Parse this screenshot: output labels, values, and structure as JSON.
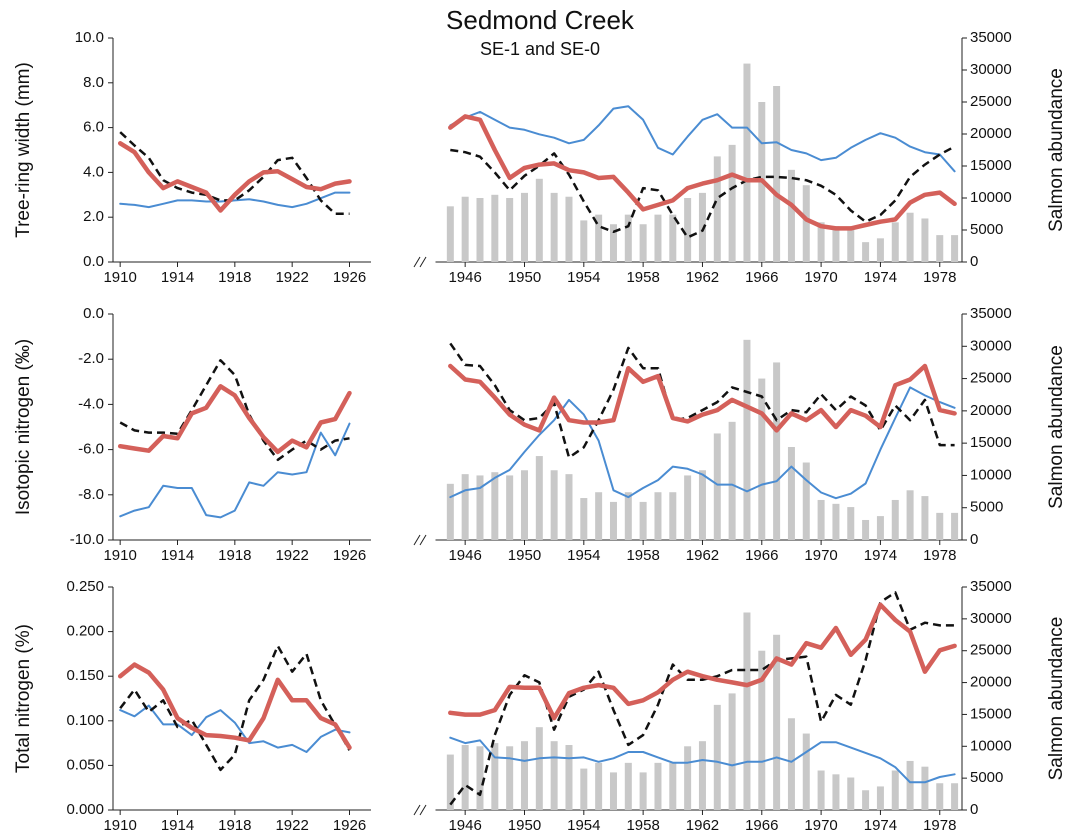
{
  "chart_data": [
    {
      "type": "line",
      "title": "Sedmond Creek",
      "subtitle": "SE-1 and SE-0",
      "ylabel": "Tree-ring width (mm)",
      "y2label": "Salmon abundance",
      "x": [
        1910,
        1911,
        1912,
        1913,
        1914,
        1915,
        1916,
        1917,
        1918,
        1919,
        1920,
        1921,
        1922,
        1923,
        1924,
        1925,
        1926,
        1945,
        1946,
        1947,
        1948,
        1949,
        1950,
        1951,
        1952,
        1953,
        1954,
        1955,
        1956,
        1957,
        1958,
        1959,
        1960,
        1961,
        1962,
        1963,
        1964,
        1965,
        1966,
        1967,
        1968,
        1969,
        1970,
        1971,
        1972,
        1973,
        1974,
        1975,
        1976,
        1977,
        1978,
        1979
      ],
      "xlim": [
        [
          1909.5,
          1927.5
        ],
        [
          1944,
          1979.5
        ]
      ],
      "xticks": [
        1910,
        1914,
        1918,
        1922,
        1926,
        1946,
        1950,
        1954,
        1958,
        1962,
        1966,
        1970,
        1974,
        1978
      ],
      "ylim": [
        0,
        10
      ],
      "yticks": [
        {
          "value": 0,
          "label": "0.0"
        },
        {
          "value": 2,
          "label": "2.0"
        },
        {
          "value": 4,
          "label": "4.0"
        },
        {
          "value": 6,
          "label": "6.0"
        },
        {
          "value": 8,
          "label": "8.0"
        },
        {
          "value": 10,
          "label": "10.0"
        }
      ],
      "y2lim": [
        0,
        35000
      ],
      "y2ticks": [
        0,
        5000,
        10000,
        15000,
        20000,
        25000,
        30000,
        35000
      ],
      "series": [
        {
          "type": "bar",
          "axis": "y2",
          "color": "#c8c8c8",
          "values": [
            null,
            null,
            null,
            null,
            null,
            null,
            null,
            null,
            null,
            null,
            null,
            null,
            null,
            null,
            null,
            null,
            null,
            8700,
            10200,
            10000,
            10500,
            10000,
            10800,
            13000,
            10800,
            10200,
            6500,
            7400,
            5900,
            7400,
            5900,
            7400,
            7400,
            10000,
            10800,
            16500,
            18300,
            31000,
            25000,
            27500,
            14400,
            12000,
            6200,
            5600,
            5100,
            3100,
            3700,
            6200,
            7700,
            6800,
            4200,
            4200
          ]
        },
        {
          "type": "line",
          "color": "#4a8cd2",
          "linewidth": 2,
          "values": [
            2.6,
            2.55,
            2.45,
            2.6,
            2.75,
            2.75,
            2.7,
            2.7,
            2.75,
            2.8,
            2.7,
            2.55,
            2.45,
            2.6,
            2.85,
            3.1,
            3.1,
            6.1,
            6.45,
            6.7,
            6.35,
            6.0,
            5.9,
            5.7,
            5.55,
            5.3,
            5.45,
            6.1,
            6.85,
            6.95,
            6.35,
            5.1,
            4.8,
            5.6,
            6.35,
            6.6,
            6.0,
            6.0,
            5.3,
            5.35,
            5.0,
            4.85,
            4.55,
            4.65,
            5.1,
            5.45,
            5.75,
            5.55,
            5.15,
            4.9,
            4.8,
            4.05
          ]
        },
        {
          "type": "line",
          "color": "#111111",
          "linewidth": 2.5,
          "linestyle": "dashed",
          "values": [
            5.8,
            5.2,
            4.65,
            3.65,
            3.3,
            3.1,
            3.0,
            2.75,
            2.75,
            3.2,
            3.8,
            4.55,
            4.65,
            3.75,
            2.75,
            2.15,
            2.15,
            5.0,
            4.9,
            4.7,
            4.0,
            3.2,
            3.85,
            4.3,
            4.85,
            3.9,
            2.7,
            1.6,
            1.35,
            1.6,
            3.3,
            3.2,
            2.1,
            1.1,
            1.4,
            2.85,
            3.3,
            3.65,
            3.8,
            3.8,
            3.75,
            3.65,
            3.4,
            3.0,
            2.3,
            1.8,
            2.1,
            2.75,
            3.8,
            4.35,
            4.8,
            5.15
          ]
        },
        {
          "type": "line",
          "color": "#d4605a",
          "linewidth": 4.5,
          "values": [
            5.3,
            4.9,
            4.0,
            3.3,
            3.6,
            3.35,
            3.1,
            2.3,
            3.0,
            3.6,
            4.0,
            4.05,
            3.7,
            3.35,
            3.25,
            3.5,
            3.6,
            6.0,
            6.5,
            6.35,
            5.0,
            3.75,
            4.2,
            4.35,
            4.4,
            4.1,
            4.0,
            3.75,
            3.8,
            3.1,
            2.35,
            2.55,
            2.75,
            3.3,
            3.5,
            3.65,
            3.9,
            3.65,
            3.65,
            3.0,
            2.55,
            1.9,
            1.6,
            1.5,
            1.5,
            1.65,
            1.8,
            1.9,
            2.65,
            3.0,
            3.1,
            2.6
          ]
        }
      ]
    },
    {
      "type": "line",
      "ylabel": "Isotopic nitrogen (‰)",
      "y2label": "Salmon abundance",
      "x": [
        1910,
        1911,
        1912,
        1913,
        1914,
        1915,
        1916,
        1917,
        1918,
        1919,
        1920,
        1921,
        1922,
        1923,
        1924,
        1925,
        1926,
        1945,
        1946,
        1947,
        1948,
        1949,
        1950,
        1951,
        1952,
        1953,
        1954,
        1955,
        1956,
        1957,
        1958,
        1959,
        1960,
        1961,
        1962,
        1963,
        1964,
        1965,
        1966,
        1967,
        1968,
        1969,
        1970,
        1971,
        1972,
        1973,
        1974,
        1975,
        1976,
        1977,
        1978,
        1979
      ],
      "xlim": [
        [
          1909.5,
          1927.5
        ],
        [
          1944,
          1979.5
        ]
      ],
      "xticks": [
        1910,
        1914,
        1918,
        1922,
        1926,
        1946,
        1950,
        1954,
        1958,
        1962,
        1966,
        1970,
        1974,
        1978
      ],
      "ylim": [
        -10,
        0
      ],
      "yticks": [
        {
          "value": -10,
          "label": "-10.0"
        },
        {
          "value": -8,
          "label": "-8.0"
        },
        {
          "value": -6,
          "label": "-6.0"
        },
        {
          "value": -4,
          "label": "-4.0"
        },
        {
          "value": -2,
          "label": "-2.0"
        },
        {
          "value": 0,
          "label": "0.0"
        }
      ],
      "y2lim": [
        0,
        35000
      ],
      "y2ticks": [
        0,
        5000,
        10000,
        15000,
        20000,
        25000,
        30000,
        35000
      ],
      "series": [
        {
          "type": "bar",
          "axis": "y2",
          "color": "#c8c8c8",
          "values": [
            null,
            null,
            null,
            null,
            null,
            null,
            null,
            null,
            null,
            null,
            null,
            null,
            null,
            null,
            null,
            null,
            null,
            8700,
            10200,
            10000,
            10500,
            10000,
            10800,
            13000,
            10800,
            10200,
            6500,
            7400,
            5900,
            7400,
            5900,
            7400,
            7400,
            10000,
            10800,
            16500,
            18300,
            31000,
            25000,
            27500,
            14400,
            12000,
            6200,
            5600,
            5100,
            3100,
            3700,
            6200,
            7700,
            6800,
            4200,
            4200
          ]
        },
        {
          "type": "line",
          "color": "#4a8cd2",
          "linewidth": 2,
          "values": [
            -8.95,
            -8.7,
            -8.55,
            -7.6,
            -7.7,
            -7.7,
            -8.9,
            -9.0,
            -8.7,
            -7.45,
            -7.6,
            -7.0,
            -7.1,
            -7.0,
            -5.25,
            -6.25,
            -4.85,
            -8.1,
            -7.8,
            -7.7,
            -7.25,
            -6.9,
            -6.1,
            -5.35,
            -4.7,
            -3.8,
            -4.45,
            -5.6,
            -7.8,
            -8.1,
            -7.7,
            -7.35,
            -6.75,
            -6.85,
            -7.1,
            -7.55,
            -7.55,
            -7.85,
            -7.55,
            -7.4,
            -6.75,
            -7.35,
            -7.9,
            -8.15,
            -7.95,
            -7.5,
            -6.0,
            -4.6,
            -3.25,
            -3.6,
            -3.9,
            -4.15
          ]
        },
        {
          "type": "line",
          "color": "#111111",
          "linewidth": 2.5,
          "linestyle": "dashed",
          "values": [
            -4.8,
            -5.15,
            -5.25,
            -5.25,
            -5.3,
            -4.25,
            -3.15,
            -2.05,
            -2.7,
            -4.45,
            -5.6,
            -6.45,
            -6.0,
            -5.6,
            -6.0,
            -5.6,
            -5.5,
            -1.3,
            -2.25,
            -2.3,
            -3.15,
            -4.25,
            -4.7,
            -4.6,
            -3.95,
            -6.35,
            -5.9,
            -4.7,
            -3.35,
            -1.5,
            -2.4,
            -2.4,
            -4.7,
            -4.6,
            -4.25,
            -3.9,
            -3.25,
            -3.45,
            -3.65,
            -4.7,
            -4.25,
            -4.35,
            -3.55,
            -4.25,
            -3.65,
            -4.05,
            -5.15,
            -4.05,
            -4.7,
            -3.8,
            -5.8,
            -5.8
          ]
        },
        {
          "type": "line",
          "color": "#d4605a",
          "linewidth": 4.5,
          "values": [
            -5.85,
            -5.95,
            -6.05,
            -5.4,
            -5.5,
            -4.4,
            -4.15,
            -3.2,
            -3.6,
            -4.6,
            -5.45,
            -6.1,
            -5.6,
            -5.9,
            -4.8,
            -4.65,
            -3.5,
            -2.3,
            -2.9,
            -3.0,
            -3.7,
            -4.45,
            -4.9,
            -5.15,
            -3.7,
            -4.7,
            -4.8,
            -4.8,
            -4.7,
            -2.4,
            -3.0,
            -2.75,
            -4.6,
            -4.75,
            -4.45,
            -4.25,
            -3.8,
            -4.1,
            -4.4,
            -5.15,
            -4.4,
            -4.7,
            -4.25,
            -5.0,
            -4.25,
            -4.5,
            -5.0,
            -3.15,
            -2.9,
            -2.3,
            -4.25,
            -4.4
          ]
        }
      ]
    },
    {
      "type": "line",
      "ylabel": "Total nitrogen (%)",
      "y2label": "Salmon abundance",
      "x": [
        1910,
        1911,
        1912,
        1913,
        1914,
        1915,
        1916,
        1917,
        1918,
        1919,
        1920,
        1921,
        1922,
        1923,
        1924,
        1925,
        1926,
        1945,
        1946,
        1947,
        1948,
        1949,
        1950,
        1951,
        1952,
        1953,
        1954,
        1955,
        1956,
        1957,
        1958,
        1959,
        1960,
        1961,
        1962,
        1963,
        1964,
        1965,
        1966,
        1967,
        1968,
        1969,
        1970,
        1971,
        1972,
        1973,
        1974,
        1975,
        1976,
        1977,
        1978,
        1979
      ],
      "xlim": [
        [
          1909.5,
          1927.5
        ],
        [
          1944,
          1979.5
        ]
      ],
      "xticks": [
        1910,
        1914,
        1918,
        1922,
        1926,
        1946,
        1950,
        1954,
        1958,
        1962,
        1966,
        1970,
        1974,
        1978
      ],
      "ylim": [
        0,
        0.25
      ],
      "yticks": [
        {
          "value": 0,
          "label": "0.000"
        },
        {
          "value": 0.05,
          "label": "0.050"
        },
        {
          "value": 0.1,
          "label": "0.100"
        },
        {
          "value": 0.15,
          "label": "0.150"
        },
        {
          "value": 0.2,
          "label": "0.200"
        },
        {
          "value": 0.25,
          "label": "0.250"
        }
      ],
      "y2lim": [
        0,
        35000
      ],
      "y2ticks": [
        0,
        5000,
        10000,
        15000,
        20000,
        25000,
        30000,
        35000
      ],
      "series": [
        {
          "type": "bar",
          "axis": "y2",
          "color": "#c8c8c8",
          "values": [
            null,
            null,
            null,
            null,
            null,
            null,
            null,
            null,
            null,
            null,
            null,
            null,
            null,
            null,
            null,
            null,
            null,
            8700,
            10200,
            10000,
            10500,
            10000,
            10800,
            13000,
            10800,
            10200,
            6500,
            7400,
            5900,
            7400,
            5900,
            7400,
            7400,
            10000,
            10800,
            16500,
            18300,
            31000,
            25000,
            27500,
            14400,
            12000,
            6200,
            5600,
            5100,
            3100,
            3700,
            6200,
            7700,
            6800,
            4200,
            4200
          ]
        },
        {
          "type": "line",
          "color": "#4a8cd2",
          "linewidth": 2,
          "values": [
            0.112,
            0.105,
            0.117,
            0.096,
            0.096,
            0.084,
            0.104,
            0.112,
            0.098,
            0.075,
            0.077,
            0.07,
            0.073,
            0.065,
            0.082,
            0.09,
            0.087,
            0.081,
            0.075,
            0.078,
            0.059,
            0.058,
            0.055,
            0.058,
            0.059,
            0.058,
            0.059,
            0.054,
            0.058,
            0.065,
            0.065,
            0.059,
            0.053,
            0.053,
            0.056,
            0.054,
            0.05,
            0.054,
            0.054,
            0.059,
            0.054,
            0.065,
            0.076,
            0.076,
            0.07,
            0.064,
            0.058,
            0.048,
            0.031,
            0.031,
            0.037,
            0.04
          ]
        },
        {
          "type": "line",
          "color": "#111111",
          "linewidth": 2.5,
          "linestyle": "dashed",
          "values": [
            0.114,
            0.135,
            0.11,
            0.123,
            0.093,
            0.101,
            0.073,
            0.045,
            0.062,
            0.123,
            0.146,
            0.184,
            0.155,
            0.175,
            0.123,
            0.095,
            0.067,
            0.006,
            0.028,
            0.017,
            0.084,
            0.129,
            0.151,
            0.143,
            0.09,
            0.127,
            0.135,
            0.155,
            0.112,
            0.073,
            0.084,
            0.118,
            0.163,
            0.146,
            0.146,
            0.15,
            0.157,
            0.157,
            0.157,
            0.168,
            0.17,
            0.172,
            0.099,
            0.129,
            0.118,
            0.168,
            0.233,
            0.244,
            0.202,
            0.21,
            0.207,
            0.207
          ]
        },
        {
          "type": "line",
          "color": "#d4605a",
          "linewidth": 4.5,
          "values": [
            0.15,
            0.163,
            0.154,
            0.135,
            0.103,
            0.092,
            0.084,
            0.083,
            0.081,
            0.078,
            0.103,
            0.146,
            0.123,
            0.123,
            0.103,
            0.096,
            0.07,
            0.109,
            0.107,
            0.107,
            0.112,
            0.138,
            0.137,
            0.137,
            0.103,
            0.131,
            0.137,
            0.14,
            0.137,
            0.119,
            0.123,
            0.132,
            0.146,
            0.155,
            0.15,
            0.146,
            0.143,
            0.14,
            0.146,
            0.17,
            0.163,
            0.187,
            0.182,
            0.204,
            0.174,
            0.191,
            0.23,
            0.213,
            0.2,
            0.155,
            0.179,
            0.184
          ]
        }
      ]
    }
  ]
}
